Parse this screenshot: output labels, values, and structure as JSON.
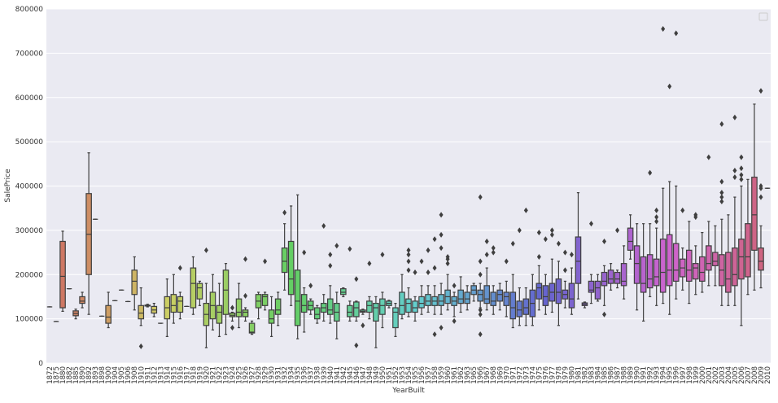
{
  "chart_data": {
    "type": "box",
    "x_label": "YearBuilt",
    "y_label": "SalePrice",
    "ylim": [
      0,
      800000
    ],
    "yticks": [
      0,
      100000,
      200000,
      300000,
      400000,
      500000,
      600000,
      700000,
      800000
    ],
    "grid": true,
    "palette": "husl",
    "legend": "upper right",
    "categories": [
      "1872",
      "1875",
      "1880",
      "1882",
      "1885",
      "1890",
      "1892",
      "1893",
      "1898",
      "1900",
      "1904",
      "1905",
      "1906",
      "1908",
      "1910",
      "1911",
      "1912",
      "1913",
      "1914",
      "1915",
      "1916",
      "1917",
      "1918",
      "1919",
      "1920",
      "1921",
      "1922",
      "1923",
      "1924",
      "1925",
      "1926",
      "1927",
      "1928",
      "1929",
      "1930",
      "1931",
      "1932",
      "1934",
      "1935",
      "1936",
      "1937",
      "1938",
      "1939",
      "1940",
      "1941",
      "1942",
      "1945",
      "1946",
      "1947",
      "1948",
      "1949",
      "1950",
      "1951",
      "1952",
      "1953",
      "1954",
      "1955",
      "1956",
      "1957",
      "1958",
      "1959",
      "1960",
      "1961",
      "1962",
      "1963",
      "1965",
      "1966",
      "1967",
      "1968",
      "1969",
      "1970",
      "1971",
      "1972",
      "1973",
      "1974",
      "1975",
      "1976",
      "1977",
      "1978",
      "1979",
      "1980",
      "1981",
      "1982",
      "1983",
      "1984",
      "1985",
      "1986",
      "1987",
      "1988",
      "1989",
      "1990",
      "1991",
      "1992",
      "1993",
      "1994",
      "1995",
      "1996",
      "1997",
      "1998",
      "1999",
      "2000",
      "2001",
      "2002",
      "2003",
      "2004",
      "2005",
      "2006",
      "2007",
      "2008",
      "2009",
      "2010"
    ],
    "min": [
      127000,
      94000,
      117000,
      168000,
      100000,
      125000,
      110000,
      325000,
      106000,
      80000,
      141000,
      165000,
      139000,
      120000,
      85000,
      127000,
      105000,
      90000,
      60000,
      90000,
      100000,
      128000,
      110000,
      130000,
      35000,
      75000,
      60000,
      65000,
      95000,
      80000,
      95000,
      65000,
      100000,
      120000,
      60000,
      85000,
      165000,
      130000,
      55000,
      70000,
      110000,
      90000,
      95000,
      90000,
      55000,
      150000,
      95000,
      95000,
      110000,
      100000,
      35000,
      80000,
      125000,
      60000,
      100000,
      105000,
      95000,
      110000,
      115000,
      110000,
      110000,
      120000,
      105000,
      115000,
      120000,
      140000,
      125000,
      120000,
      110000,
      120000,
      105000,
      80000,
      85000,
      85000,
      85000,
      120000,
      110000,
      115000,
      85000,
      125000,
      110000,
      145000,
      125000,
      135000,
      140000,
      130000,
      165000,
      170000,
      145000,
      235000,
      120000,
      95000,
      150000,
      130000,
      135000,
      110000,
      145000,
      165000,
      135000,
      155000,
      160000,
      175000,
      175000,
      130000,
      130000,
      130000,
      85000,
      155000,
      165000,
      170000,
      395000
    ],
    "q1": [
      127000,
      94000,
      125000,
      168000,
      107000,
      135000,
      200000,
      325000,
      106000,
      90000,
      141000,
      165000,
      139000,
      155000,
      100000,
      129000,
      113000,
      90000,
      100000,
      115000,
      115000,
      128000,
      125000,
      145000,
      85000,
      100000,
      90000,
      110000,
      105000,
      105000,
      105000,
      68000,
      125000,
      130000,
      90000,
      110000,
      205000,
      155000,
      85000,
      115000,
      120000,
      100000,
      115000,
      110000,
      95000,
      155000,
      105000,
      105000,
      115000,
      115000,
      95000,
      110000,
      130000,
      80000,
      110000,
      115000,
      115000,
      125000,
      130000,
      130000,
      130000,
      135000,
      130000,
      135000,
      135000,
      155000,
      140000,
      135000,
      130000,
      140000,
      130000,
      100000,
      105000,
      110000,
      105000,
      145000,
      130000,
      140000,
      135000,
      145000,
      125000,
      180000,
      130000,
      160000,
      145000,
      175000,
      180000,
      180000,
      175000,
      255000,
      180000,
      160000,
      170000,
      175000,
      160000,
      175000,
      185000,
      195000,
      185000,
      190000,
      185000,
      210000,
      220000,
      175000,
      160000,
      175000,
      190000,
      195000,
      255000,
      210000,
      395000
    ],
    "median": [
      127000,
      94000,
      196000,
      168000,
      112000,
      140000,
      291000,
      325000,
      106000,
      104000,
      141000,
      165000,
      139000,
      185000,
      113000,
      130000,
      120000,
      90000,
      125000,
      130000,
      140000,
      128000,
      180000,
      170000,
      110000,
      130000,
      115000,
      165000,
      108000,
      115000,
      115000,
      70000,
      140000,
      150000,
      100000,
      120000,
      230000,
      190000,
      140000,
      130000,
      130000,
      110000,
      125000,
      120000,
      115000,
      160000,
      115000,
      125000,
      117000,
      130000,
      125000,
      130000,
      135000,
      115000,
      130000,
      135000,
      125000,
      135000,
      140000,
      140000,
      140000,
      150000,
      140000,
      145000,
      145000,
      165000,
      155000,
      145000,
      140000,
      155000,
      150000,
      125000,
      120000,
      125000,
      135000,
      170000,
      150000,
      160000,
      160000,
      155000,
      145000,
      230000,
      133000,
      165000,
      170000,
      185000,
      190000,
      190000,
      185000,
      275000,
      225000,
      180000,
      190000,
      195000,
      205000,
      210000,
      210000,
      215000,
      210000,
      215000,
      205000,
      225000,
      230000,
      210000,
      190000,
      200000,
      240000,
      240000,
      335000,
      230000,
      395000
    ],
    "q3": [
      127000,
      94000,
      275000,
      168000,
      118000,
      150000,
      383000,
      325000,
      106000,
      130000,
      141000,
      165000,
      139000,
      210000,
      130000,
      131000,
      128000,
      90000,
      150000,
      155000,
      150000,
      128000,
      215000,
      180000,
      135000,
      160000,
      130000,
      210000,
      113000,
      145000,
      120000,
      90000,
      155000,
      155000,
      120000,
      145000,
      260000,
      275000,
      210000,
      155000,
      140000,
      125000,
      135000,
      145000,
      135000,
      168000,
      130000,
      138000,
      120000,
      140000,
      135000,
      145000,
      140000,
      125000,
      160000,
      145000,
      140000,
      150000,
      155000,
      150000,
      155000,
      165000,
      150000,
      165000,
      160000,
      175000,
      165000,
      175000,
      160000,
      165000,
      160000,
      160000,
      140000,
      145000,
      165000,
      180000,
      175000,
      180000,
      190000,
      165000,
      180000,
      285000,
      136000,
      185000,
      185000,
      205000,
      210000,
      205000,
      225000,
      305000,
      265000,
      240000,
      245000,
      235000,
      280000,
      290000,
      270000,
      235000,
      255000,
      225000,
      240000,
      265000,
      250000,
      245000,
      250000,
      260000,
      280000,
      315000,
      420000,
      260000,
      395000
    ],
    "max": [
      127000,
      94000,
      298000,
      168000,
      122000,
      160000,
      475000,
      325000,
      106000,
      160000,
      141000,
      165000,
      139000,
      240000,
      170000,
      133000,
      135000,
      90000,
      190000,
      200000,
      160000,
      128000,
      240000,
      185000,
      180000,
      200000,
      180000,
      225000,
      115000,
      180000,
      125000,
      95000,
      160000,
      160000,
      150000,
      160000,
      315000,
      355000,
      380000,
      170000,
      145000,
      130000,
      155000,
      175000,
      160000,
      170000,
      140000,
      140000,
      122000,
      150000,
      150000,
      160000,
      142000,
      135000,
      200000,
      170000,
      150000,
      175000,
      175000,
      175000,
      180000,
      200000,
      160000,
      195000,
      175000,
      180000,
      180000,
      215000,
      175000,
      180000,
      185000,
      200000,
      170000,
      170000,
      200000,
      220000,
      200000,
      235000,
      230000,
      185000,
      215000,
      385000,
      138000,
      200000,
      200000,
      220000,
      225000,
      210000,
      265000,
      335000,
      315000,
      315000,
      315000,
      305000,
      395000,
      410000,
      400000,
      260000,
      320000,
      265000,
      295000,
      320000,
      310000,
      325000,
      335000,
      375000,
      400000,
      415000,
      585000,
      310000,
      395000
    ],
    "outliers": [
      [],
      [],
      [],
      [],
      [],
      [],
      [],
      [],
      [],
      [],
      [],
      [],
      [],
      [],
      [
        38000
      ],
      [],
      [],
      [],
      [],
      [],
      [
        215000
      ],
      [],
      [],
      [],
      [
        255000
      ],
      [],
      [],
      [],
      [
        80000,
        125000
      ],
      [],
      [
        152000,
        235000
      ],
      [],
      [],
      [
        230000
      ],
      [],
      [],
      [
        340000
      ],
      [],
      [],
      [
        250000
      ],
      [
        175000
      ],
      [],
      [
        310000
      ],
      [
        220000,
        245000
      ],
      [
        265000
      ],
      [],
      [
        258000
      ],
      [
        40000,
        190000
      ],
      [
        85000
      ],
      [
        225000
      ],
      [],
      [
        245000
      ],
      [],
      [],
      [],
      [
        210000,
        230000,
        245000,
        255000
      ],
      [
        205000
      ],
      [
        230000
      ],
      [
        205000,
        255000
      ],
      [
        65000,
        215000,
        280000
      ],
      [
        80000,
        260000,
        290000,
        335000
      ],
      [
        225000,
        235000,
        240000
      ],
      [
        95000,
        175000
      ],
      [],
      [],
      [],
      [
        65000,
        110000,
        120000,
        200000,
        230000,
        375000
      ],
      [
        245000,
        275000
      ],
      [
        250000,
        260000
      ],
      [],
      [
        230000
      ],
      [
        270000
      ],
      [
        300000
      ],
      [
        345000
      ],
      [],
      [
        240000,
        295000
      ],
      [
        280000
      ],
      [
        290000,
        300000
      ],
      [
        270000
      ],
      [
        210000,
        250000
      ],
      [
        245000
      ],
      [],
      [],
      [
        315000
      ],
      [],
      [
        110000,
        275000
      ],
      [],
      [
        300000
      ],
      [],
      [],
      [],
      [],
      [
        430000
      ],
      [
        320000,
        330000,
        345000
      ],
      [
        755000
      ],
      [
        625000
      ],
      [
        745000
      ],
      [
        345000
      ],
      [],
      [
        330000,
        335000
      ],
      [],
      [
        465000
      ],
      [],
      [
        365000,
        375000,
        385000,
        410000,
        540000
      ],
      [],
      [
        420000,
        435000,
        555000
      ],
      [
        415000,
        425000,
        440000,
        465000
      ],
      [],
      [],
      [
        375000,
        395000,
        400000,
        615000
      ],
      []
    ]
  }
}
